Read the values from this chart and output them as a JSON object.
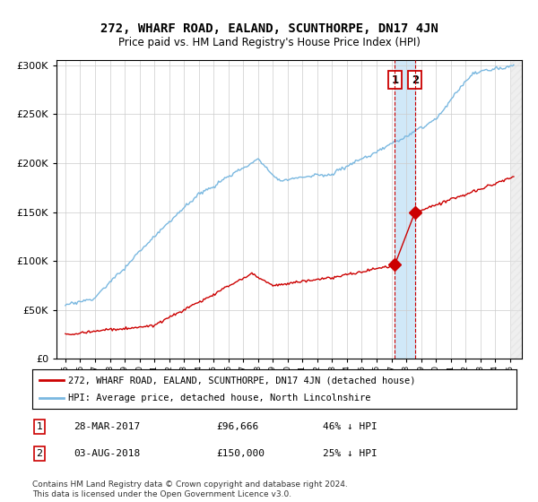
{
  "title": "272, WHARF ROAD, EALAND, SCUNTHORPE, DN17 4JN",
  "subtitle": "Price paid vs. HM Land Registry's House Price Index (HPI)",
  "legend_line1": "272, WHARF ROAD, EALAND, SCUNTHORPE, DN17 4JN (detached house)",
  "legend_line2": "HPI: Average price, detached house, North Lincolnshire",
  "point1_date": "28-MAR-2017",
  "point1_price": "£96,666",
  "point1_hpi": "46% ↓ HPI",
  "point1_year": 2017.23,
  "point1_value": 96666,
  "point2_date": "03-AUG-2018",
  "point2_price": "£150,000",
  "point2_hpi": "25% ↓ HPI",
  "point2_year": 2018.59,
  "point2_value": 150000,
  "footer": "Contains HM Land Registry data © Crown copyright and database right 2024.\nThis data is licensed under the Open Government Licence v3.0.",
  "hpi_color": "#7ab8e0",
  "property_color": "#cc0000",
  "background_color": "#ffffff",
  "grid_color": "#cccccc",
  "shade_color": "#d0e8f8",
  "vline_color": "#cc0000"
}
